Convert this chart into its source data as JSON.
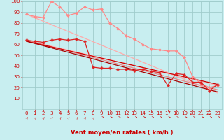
{
  "xlabel": "Vent moyen/en rafales ( km/h )",
  "bg_color": "#c8eef0",
  "grid_color": "#a0cccc",
  "xlim": [
    -0.5,
    23.5
  ],
  "ylim": [
    0,
    100
  ],
  "yticks": [
    10,
    20,
    30,
    40,
    50,
    60,
    70,
    80,
    90,
    100
  ],
  "xticks": [
    0,
    1,
    2,
    3,
    4,
    5,
    6,
    7,
    8,
    9,
    10,
    11,
    12,
    13,
    14,
    15,
    16,
    17,
    18,
    19,
    20,
    21,
    22,
    23
  ],
  "lines": [
    {
      "x": [
        0,
        1,
        2,
        3,
        4,
        5,
        6,
        7,
        8,
        9,
        10,
        11,
        12,
        13,
        14,
        15,
        16,
        17,
        18,
        19,
        20,
        21,
        22,
        23
      ],
      "y": [
        88,
        86,
        85,
        100,
        95,
        87,
        89,
        95,
        92,
        93,
        80,
        75,
        68,
        65,
        60,
        56,
        55,
        54,
        54,
        48,
        30,
        24,
        20,
        22
      ],
      "color": "#ff8888",
      "lw": 0.9,
      "marker": "D",
      "ms": 2.0,
      "zorder": 3
    },
    {
      "x": [
        0,
        23
      ],
      "y": [
        88,
        15
      ],
      "color": "#ffaaaa",
      "lw": 0.9,
      "marker": null,
      "ms": 0,
      "zorder": 2
    },
    {
      "x": [
        0,
        23
      ],
      "y": [
        64,
        22
      ],
      "color": "#ffbbbb",
      "lw": 0.9,
      "marker": null,
      "ms": 0,
      "zorder": 2
    },
    {
      "x": [
        0,
        23
      ],
      "y": [
        64,
        18
      ],
      "color": "#ee8888",
      "lw": 0.9,
      "marker": null,
      "ms": 0,
      "zorder": 2
    },
    {
      "x": [
        0,
        1,
        2,
        3,
        4,
        5,
        6,
        7,
        8,
        9,
        10,
        11,
        12,
        13,
        14,
        15,
        16,
        17,
        18,
        19,
        20,
        21,
        22,
        23
      ],
      "y": [
        64,
        63,
        62,
        64,
        65,
        64,
        65,
        63,
        39,
        38,
        38,
        37,
        37,
        36,
        37,
        35,
        34,
        22,
        33,
        32,
        25,
        25,
        17,
        23
      ],
      "color": "#dd2222",
      "lw": 0.9,
      "marker": "P",
      "ms": 2.5,
      "zorder": 4
    },
    {
      "x": [
        0,
        23
      ],
      "y": [
        63,
        23
      ],
      "color": "#cc0000",
      "lw": 0.9,
      "marker": null,
      "ms": 0,
      "zorder": 2
    },
    {
      "x": [
        0,
        23
      ],
      "y": [
        63,
        16
      ],
      "color": "#aa0000",
      "lw": 0.9,
      "marker": null,
      "ms": 0,
      "zorder": 2
    }
  ],
  "arrow_color": "#cc3333",
  "axis_label_color": "#cc0000",
  "tick_color": "#cc0000",
  "tick_fontsize": 5.0,
  "xlabel_fontsize": 6.0
}
